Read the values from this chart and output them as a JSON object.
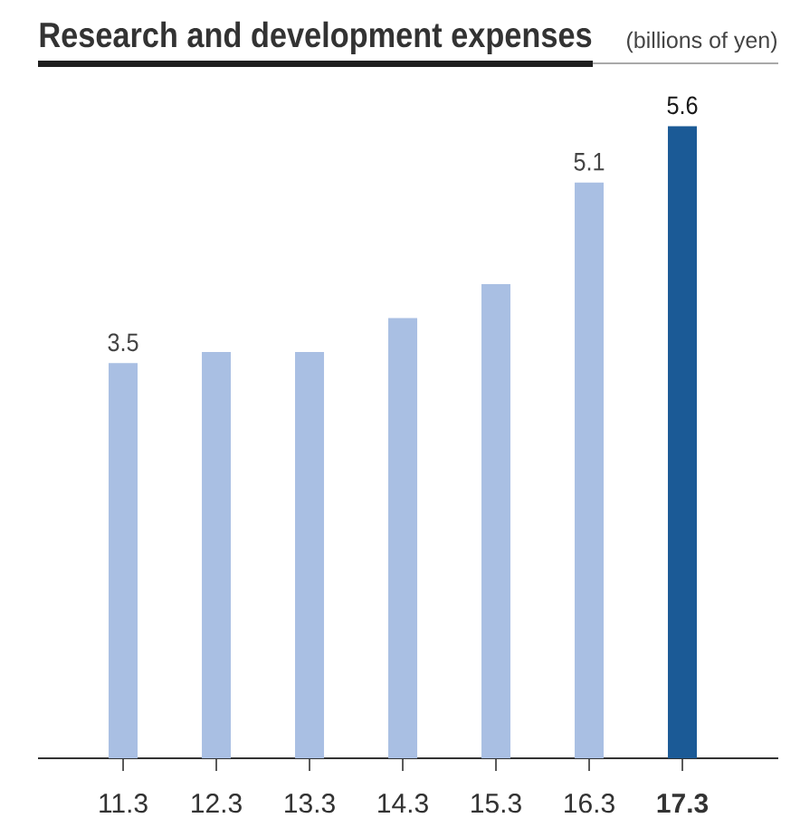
{
  "chart_data": {
    "type": "bar",
    "title": "Research and development expenses",
    "subtitle": "(billions of yen)",
    "categories": [
      "11.3",
      "12.3",
      "13.3",
      "14.3",
      "15.3",
      "16.3",
      "17.3"
    ],
    "values": [
      3.5,
      3.6,
      3.6,
      3.9,
      4.2,
      5.1,
      5.6
    ],
    "colors": [
      "#a9bfe3",
      "#a9bfe3",
      "#a9bfe3",
      "#a9bfe3",
      "#a9bfe3",
      "#a9bfe3",
      "#1b5a96"
    ],
    "value_labels": [
      "3.5",
      null,
      null,
      null,
      null,
      "5.1",
      "5.6"
    ]
  }
}
